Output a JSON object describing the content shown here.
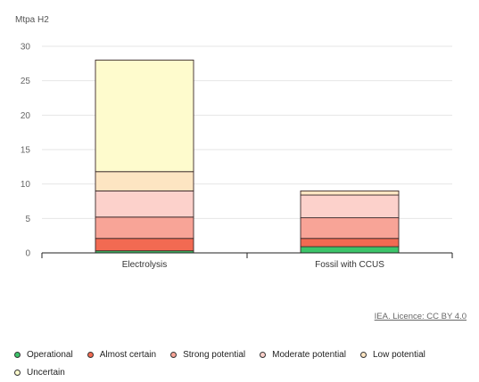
{
  "chart_data": {
    "type": "bar",
    "stacked": true,
    "ylabel": "Mtpa H2",
    "ylim": [
      0,
      30
    ],
    "yticks": [
      0,
      5,
      10,
      15,
      20,
      25,
      30
    ],
    "grid": true,
    "legend_position": "bottom",
    "categories": [
      "Electrolysis",
      "Fossil with CCUS"
    ],
    "series": [
      {
        "name": "Operational",
        "color": "#3cc46a",
        "values": [
          0.3,
          0.9
        ]
      },
      {
        "name": "Almost certain",
        "color": "#f26a52",
        "values": [
          1.8,
          1.2
        ]
      },
      {
        "name": "Strong potential",
        "color": "#f8a497",
        "values": [
          3.1,
          3.0
        ]
      },
      {
        "name": "Moderate potential",
        "color": "#fcd1cb",
        "values": [
          3.8,
          3.3
        ]
      },
      {
        "name": "Low potential",
        "color": "#fde5c2",
        "values": [
          2.8,
          0.6
        ]
      },
      {
        "name": "Uncertain",
        "color": "#fefbcd",
        "values": [
          16.2,
          0
        ]
      }
    ]
  },
  "credit": "IEA. Licence: CC BY 4.0"
}
